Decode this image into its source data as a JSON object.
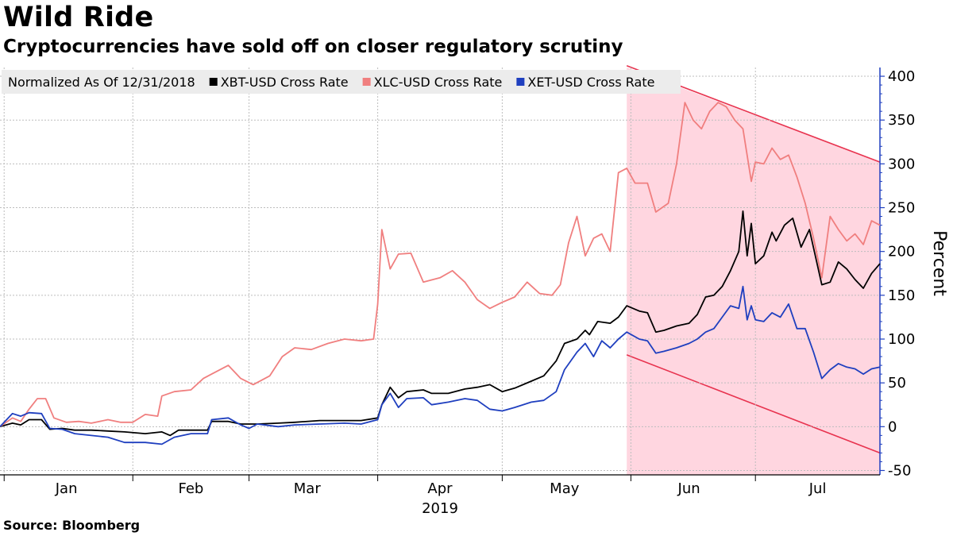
{
  "header": {
    "title": "Wild Ride",
    "subtitle": "Cryptocurrencies have sold off on closer regulatory scrutiny"
  },
  "footer": {
    "source": "Source: Bloomberg"
  },
  "chart_data": {
    "type": "line",
    "legend_note": "Normalized As Of 12/31/2018",
    "legend_placement": "top-left",
    "ylabel": "Percent",
    "ylim": [
      -55,
      410
    ],
    "yticks": [
      -50,
      0,
      50,
      100,
      150,
      200,
      250,
      300,
      350,
      400
    ],
    "y_axis_side": "right",
    "grid": true,
    "x_range": [
      "2018-12-31",
      "2019-07-31"
    ],
    "x_month_ticks": [
      "2019-01-01",
      "2019-02-01",
      "2019-03-01",
      "2019-04-01",
      "2019-05-01",
      "2019-06-01",
      "2019-07-01",
      "2019-08-01"
    ],
    "x_labels": [
      {
        "text": "Jan",
        "date": "2019-01-16"
      },
      {
        "text": "Feb",
        "date": "2019-02-15"
      },
      {
        "text": "Mar",
        "date": "2019-03-15"
      },
      {
        "text": "Apr",
        "date": "2019-04-16"
      },
      {
        "text": "May",
        "date": "2019-05-16"
      },
      {
        "text": "Jun",
        "date": "2019-06-15"
      },
      {
        "text": "Jul",
        "date": "2019-07-16"
      }
    ],
    "x_year_label": {
      "text": "2019",
      "date": "2019-04-16"
    },
    "channel": {
      "color": "#ffd6e0",
      "line_color": "#e8334f",
      "start_date": "2019-05-31",
      "upper": [
        [
          "2019-05-31",
          412
        ],
        [
          "2019-07-31",
          302
        ]
      ],
      "lower": [
        [
          "2019-05-31",
          82
        ],
        [
          "2019-07-31",
          -30
        ]
      ]
    },
    "series": [
      {
        "name": "XBT-USD Cross Rate",
        "color": "#000000",
        "points": [
          [
            "2018-12-31",
            0
          ],
          [
            "2019-01-03",
            4
          ],
          [
            "2019-01-05",
            2
          ],
          [
            "2019-01-07",
            8
          ],
          [
            "2019-01-10",
            8
          ],
          [
            "2019-01-12",
            -3
          ],
          [
            "2019-01-15",
            -2
          ],
          [
            "2019-01-18",
            -4
          ],
          [
            "2019-01-22",
            -4
          ],
          [
            "2019-01-26",
            -5
          ],
          [
            "2019-01-30",
            -6
          ],
          [
            "2019-02-04",
            -8
          ],
          [
            "2019-02-08",
            -6
          ],
          [
            "2019-02-10",
            -10
          ],
          [
            "2019-02-12",
            -4
          ],
          [
            "2019-02-15",
            -4
          ],
          [
            "2019-02-19",
            -4
          ],
          [
            "2019-02-20",
            6
          ],
          [
            "2019-02-24",
            6
          ],
          [
            "2019-02-27",
            3
          ],
          [
            "2019-03-03",
            3
          ],
          [
            "2019-03-08",
            4
          ],
          [
            "2019-03-12",
            5
          ],
          [
            "2019-03-18",
            7
          ],
          [
            "2019-03-24",
            7
          ],
          [
            "2019-03-28",
            7
          ],
          [
            "2019-04-01",
            10
          ],
          [
            "2019-04-02",
            25
          ],
          [
            "2019-04-04",
            45
          ],
          [
            "2019-04-06",
            33
          ],
          [
            "2019-04-08",
            40
          ],
          [
            "2019-04-12",
            42
          ],
          [
            "2019-04-14",
            38
          ],
          [
            "2019-04-18",
            38
          ],
          [
            "2019-04-22",
            43
          ],
          [
            "2019-04-25",
            45
          ],
          [
            "2019-04-28",
            48
          ],
          [
            "2019-05-01",
            40
          ],
          [
            "2019-05-04",
            44
          ],
          [
            "2019-05-08",
            52
          ],
          [
            "2019-05-11",
            58
          ],
          [
            "2019-05-14",
            75
          ],
          [
            "2019-05-16",
            95
          ],
          [
            "2019-05-19",
            100
          ],
          [
            "2019-05-21",
            110
          ],
          [
            "2019-05-22",
            105
          ],
          [
            "2019-05-24",
            120
          ],
          [
            "2019-05-27",
            118
          ],
          [
            "2019-05-29",
            125
          ],
          [
            "2019-05-31",
            138
          ],
          [
            "2019-06-03",
            132
          ],
          [
            "2019-06-05",
            130
          ],
          [
            "2019-06-07",
            108
          ],
          [
            "2019-06-09",
            110
          ],
          [
            "2019-06-12",
            115
          ],
          [
            "2019-06-15",
            118
          ],
          [
            "2019-06-17",
            128
          ],
          [
            "2019-06-19",
            148
          ],
          [
            "2019-06-21",
            150
          ],
          [
            "2019-06-23",
            160
          ],
          [
            "2019-06-25",
            178
          ],
          [
            "2019-06-27",
            200
          ],
          [
            "2019-06-28",
            246
          ],
          [
            "2019-06-29",
            195
          ],
          [
            "2019-06-30",
            232
          ],
          [
            "2019-07-01",
            186
          ],
          [
            "2019-07-03",
            195
          ],
          [
            "2019-07-05",
            222
          ],
          [
            "2019-07-06",
            212
          ],
          [
            "2019-07-08",
            230
          ],
          [
            "2019-07-10",
            238
          ],
          [
            "2019-07-12",
            205
          ],
          [
            "2019-07-14",
            225
          ],
          [
            "2019-07-17",
            162
          ],
          [
            "2019-07-19",
            165
          ],
          [
            "2019-07-21",
            188
          ],
          [
            "2019-07-23",
            180
          ],
          [
            "2019-07-25",
            168
          ],
          [
            "2019-07-27",
            158
          ],
          [
            "2019-07-29",
            175
          ],
          [
            "2019-07-31",
            186
          ]
        ]
      },
      {
        "name": "XLC-USD Cross Rate",
        "color": "#f07f7f",
        "points": [
          [
            "2018-12-31",
            0
          ],
          [
            "2019-01-03",
            10
          ],
          [
            "2019-01-05",
            6
          ],
          [
            "2019-01-07",
            20
          ],
          [
            "2019-01-09",
            32
          ],
          [
            "2019-01-11",
            32
          ],
          [
            "2019-01-13",
            10
          ],
          [
            "2019-01-16",
            5
          ],
          [
            "2019-01-19",
            6
          ],
          [
            "2019-01-22",
            4
          ],
          [
            "2019-01-26",
            8
          ],
          [
            "2019-01-29",
            5
          ],
          [
            "2019-02-01",
            5
          ],
          [
            "2019-02-04",
            14
          ],
          [
            "2019-02-07",
            12
          ],
          [
            "2019-02-08",
            35
          ],
          [
            "2019-02-11",
            40
          ],
          [
            "2019-02-15",
            42
          ],
          [
            "2019-02-18",
            55
          ],
          [
            "2019-02-20",
            60
          ],
          [
            "2019-02-22",
            65
          ],
          [
            "2019-02-24",
            70
          ],
          [
            "2019-02-27",
            55
          ],
          [
            "2019-03-02",
            48
          ],
          [
            "2019-03-06",
            58
          ],
          [
            "2019-03-09",
            80
          ],
          [
            "2019-03-12",
            90
          ],
          [
            "2019-03-16",
            88
          ],
          [
            "2019-03-20",
            95
          ],
          [
            "2019-03-24",
            100
          ],
          [
            "2019-03-28",
            98
          ],
          [
            "2019-03-31",
            100
          ],
          [
            "2019-04-01",
            140
          ],
          [
            "2019-04-02",
            225
          ],
          [
            "2019-04-04",
            180
          ],
          [
            "2019-04-06",
            197
          ],
          [
            "2019-04-09",
            198
          ],
          [
            "2019-04-12",
            165
          ],
          [
            "2019-04-16",
            170
          ],
          [
            "2019-04-19",
            178
          ],
          [
            "2019-04-22",
            165
          ],
          [
            "2019-04-25",
            145
          ],
          [
            "2019-04-28",
            135
          ],
          [
            "2019-05-01",
            142
          ],
          [
            "2019-05-04",
            148
          ],
          [
            "2019-05-07",
            165
          ],
          [
            "2019-05-10",
            152
          ],
          [
            "2019-05-13",
            150
          ],
          [
            "2019-05-15",
            162
          ],
          [
            "2019-05-17",
            210
          ],
          [
            "2019-05-19",
            240
          ],
          [
            "2019-05-21",
            195
          ],
          [
            "2019-05-23",
            215
          ],
          [
            "2019-05-25",
            220
          ],
          [
            "2019-05-27",
            200
          ],
          [
            "2019-05-29",
            290
          ],
          [
            "2019-05-31",
            295
          ],
          [
            "2019-06-02",
            278
          ],
          [
            "2019-06-05",
            278
          ],
          [
            "2019-06-07",
            245
          ],
          [
            "2019-06-10",
            255
          ],
          [
            "2019-06-12",
            300
          ],
          [
            "2019-06-14",
            370
          ],
          [
            "2019-06-16",
            350
          ],
          [
            "2019-06-18",
            340
          ],
          [
            "2019-06-20",
            360
          ],
          [
            "2019-06-22",
            370
          ],
          [
            "2019-06-24",
            365
          ],
          [
            "2019-06-26",
            350
          ],
          [
            "2019-06-28",
            340
          ],
          [
            "2019-06-30",
            280
          ],
          [
            "2019-07-01",
            302
          ],
          [
            "2019-07-03",
            300
          ],
          [
            "2019-07-05",
            318
          ],
          [
            "2019-07-07",
            305
          ],
          [
            "2019-07-09",
            310
          ],
          [
            "2019-07-11",
            285
          ],
          [
            "2019-07-13",
            255
          ],
          [
            "2019-07-15",
            215
          ],
          [
            "2019-07-17",
            170
          ],
          [
            "2019-07-19",
            240
          ],
          [
            "2019-07-21",
            225
          ],
          [
            "2019-07-23",
            212
          ],
          [
            "2019-07-25",
            220
          ],
          [
            "2019-07-27",
            208
          ],
          [
            "2019-07-29",
            235
          ],
          [
            "2019-07-31",
            230
          ]
        ]
      },
      {
        "name": "XET-USD Cross Rate",
        "color": "#1f3fbf",
        "points": [
          [
            "2018-12-31",
            0
          ],
          [
            "2019-01-03",
            15
          ],
          [
            "2019-01-05",
            12
          ],
          [
            "2019-01-07",
            16
          ],
          [
            "2019-01-10",
            15
          ],
          [
            "2019-01-12",
            -2
          ],
          [
            "2019-01-15",
            -3
          ],
          [
            "2019-01-18",
            -8
          ],
          [
            "2019-01-22",
            -10
          ],
          [
            "2019-01-26",
            -12
          ],
          [
            "2019-01-30",
            -18
          ],
          [
            "2019-02-04",
            -18
          ],
          [
            "2019-02-08",
            -20
          ],
          [
            "2019-02-11",
            -12
          ],
          [
            "2019-02-15",
            -8
          ],
          [
            "2019-02-19",
            -8
          ],
          [
            "2019-02-20",
            8
          ],
          [
            "2019-02-24",
            10
          ],
          [
            "2019-02-27",
            2
          ],
          [
            "2019-03-01",
            -2
          ],
          [
            "2019-03-03",
            3
          ],
          [
            "2019-03-08",
            0
          ],
          [
            "2019-03-12",
            2
          ],
          [
            "2019-03-18",
            3
          ],
          [
            "2019-03-24",
            4
          ],
          [
            "2019-03-28",
            3
          ],
          [
            "2019-04-01",
            8
          ],
          [
            "2019-04-02",
            25
          ],
          [
            "2019-04-04",
            38
          ],
          [
            "2019-04-06",
            22
          ],
          [
            "2019-04-08",
            32
          ],
          [
            "2019-04-12",
            33
          ],
          [
            "2019-04-14",
            25
          ],
          [
            "2019-04-18",
            28
          ],
          [
            "2019-04-22",
            32
          ],
          [
            "2019-04-25",
            30
          ],
          [
            "2019-04-28",
            20
          ],
          [
            "2019-05-01",
            18
          ],
          [
            "2019-05-04",
            22
          ],
          [
            "2019-05-08",
            28
          ],
          [
            "2019-05-11",
            30
          ],
          [
            "2019-05-14",
            40
          ],
          [
            "2019-05-16",
            65
          ],
          [
            "2019-05-19",
            85
          ],
          [
            "2019-05-21",
            95
          ],
          [
            "2019-05-23",
            80
          ],
          [
            "2019-05-25",
            98
          ],
          [
            "2019-05-27",
            90
          ],
          [
            "2019-05-29",
            100
          ],
          [
            "2019-05-31",
            108
          ],
          [
            "2019-06-03",
            100
          ],
          [
            "2019-06-05",
            98
          ],
          [
            "2019-06-07",
            84
          ],
          [
            "2019-06-09",
            86
          ],
          [
            "2019-06-12",
            90
          ],
          [
            "2019-06-15",
            95
          ],
          [
            "2019-06-17",
            100
          ],
          [
            "2019-06-19",
            108
          ],
          [
            "2019-06-21",
            112
          ],
          [
            "2019-06-23",
            125
          ],
          [
            "2019-06-25",
            138
          ],
          [
            "2019-06-27",
            135
          ],
          [
            "2019-06-28",
            160
          ],
          [
            "2019-06-29",
            122
          ],
          [
            "2019-06-30",
            138
          ],
          [
            "2019-07-01",
            122
          ],
          [
            "2019-07-03",
            120
          ],
          [
            "2019-07-05",
            130
          ],
          [
            "2019-07-07",
            125
          ],
          [
            "2019-07-09",
            140
          ],
          [
            "2019-07-11",
            112
          ],
          [
            "2019-07-13",
            112
          ],
          [
            "2019-07-15",
            85
          ],
          [
            "2019-07-17",
            55
          ],
          [
            "2019-07-19",
            65
          ],
          [
            "2019-07-21",
            72
          ],
          [
            "2019-07-23",
            68
          ],
          [
            "2019-07-25",
            66
          ],
          [
            "2019-07-27",
            60
          ],
          [
            "2019-07-29",
            66
          ],
          [
            "2019-07-31",
            68
          ]
        ]
      }
    ]
  }
}
